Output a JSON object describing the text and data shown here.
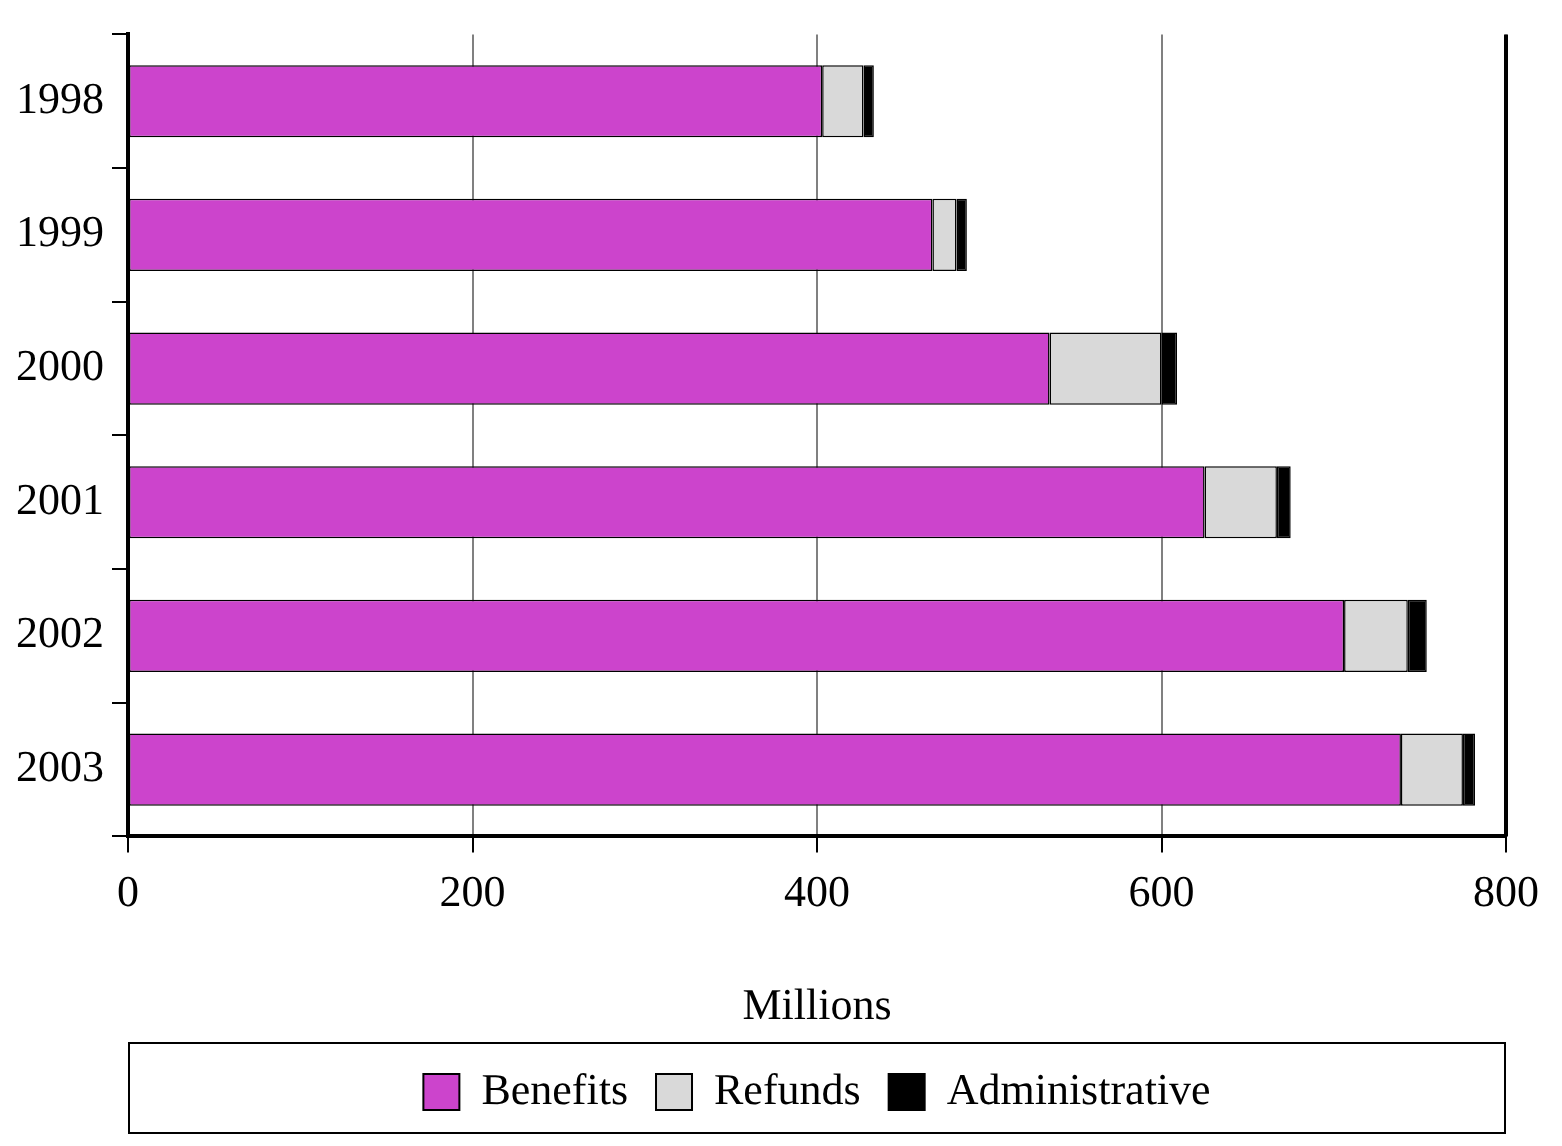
{
  "chart_data": {
    "type": "bar",
    "orientation": "horizontal",
    "stacked": true,
    "xlabel": "Millions",
    "categories": [
      "1998",
      "1999",
      "2000",
      "2001",
      "2002",
      "2003"
    ],
    "series": [
      {
        "name": "Benefits",
        "color": "#cc44cc",
        "values": [
          403,
          467,
          535,
          625,
          706,
          739
        ]
      },
      {
        "name": "Refunds",
        "color": "#d9d9d9",
        "values": [
          24,
          14,
          65,
          42,
          37,
          36
        ]
      },
      {
        "name": "Administrative",
        "color": "#000000",
        "values": [
          6,
          6,
          9,
          8,
          11,
          7
        ]
      }
    ],
    "xlim": [
      0,
      800
    ],
    "xticks": [
      0,
      200,
      400,
      600,
      800
    ],
    "grid": "x",
    "legend": "bottom"
  }
}
